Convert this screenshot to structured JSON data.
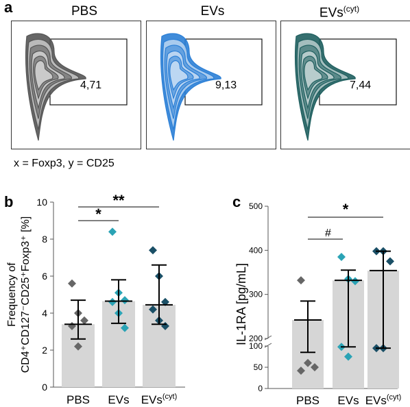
{
  "panel_a": {
    "letter": "a",
    "plots": [
      {
        "title": "PBS",
        "title_sup": "",
        "value": "4,71",
        "color": "#555555"
      },
      {
        "title": "EVs",
        "title_sup": "",
        "value": "9,13",
        "color": "#2b7fd6"
      },
      {
        "title": "EVs",
        "title_sup": "(cyt)",
        "value": "7,44",
        "color": "#1f5f5f"
      }
    ],
    "axis_note": "x = Foxp3, y = CD25"
  },
  "chart_data": [
    {
      "panel": "b",
      "type": "bar",
      "ylabel_line1": "Frequency of",
      "ylabel_line2": "CD4⁺CD127⁻CD25⁺Foxp3⁺ [%]",
      "ylim": [
        0,
        10
      ],
      "yticks": [
        "0",
        "2",
        "4",
        "6",
        "8",
        "10"
      ],
      "categories": [
        "PBS",
        "EVs",
        "EVs"
      ],
      "category_sups": [
        "",
        "",
        "(cyt)"
      ],
      "bar_values": [
        3.4,
        4.65,
        4.45
      ],
      "error_low": [
        2.6,
        3.45,
        3.4
      ],
      "error_high": [
        4.7,
        5.8,
        6.6
      ],
      "points": [
        [
          5.6,
          4.0,
          3.6,
          3.3,
          2.2
        ],
        [
          8.4,
          5.1,
          4.7,
          4.6,
          4.0,
          3.2
        ],
        [
          7.4,
          6.0,
          4.6,
          4.2,
          3.6,
          3.3
        ]
      ],
      "point_colors": [
        "#666666",
        "#2aa3b5",
        "#1a4f66"
      ],
      "significance": [
        {
          "label": "*",
          "from": 0,
          "to": 1
        },
        {
          "label": "**",
          "from": 0,
          "to": 2
        }
      ]
    },
    {
      "panel": "c",
      "type": "bar",
      "ylabel": "IL-1RA [pg/mL]",
      "axis_break": true,
      "lower_range": [
        0,
        100
      ],
      "upper_range": [
        200,
        500
      ],
      "yticks_lower": [
        "0",
        "50",
        "100"
      ],
      "yticks_upper": [
        "200",
        "300",
        "400",
        "500"
      ],
      "categories": [
        "PBS",
        "EVs",
        "EVs"
      ],
      "category_sups": [
        "",
        "",
        "(cyt)"
      ],
      "bar_values": [
        242,
        332,
        354
      ],
      "error_low": [
        85,
        98,
        95
      ],
      "error_high": [
        285,
        355,
        398
      ],
      "points": [
        [
          332,
          60,
          50,
          42
        ],
        [
          385,
          335,
          330,
          98,
          75
        ],
        [
          398,
          398,
          375,
          95,
          95
        ]
      ],
      "point_colors": [
        "#666666",
        "#2aa3b5",
        "#1a4f66"
      ],
      "significance": [
        {
          "label": "#",
          "from": 0,
          "to": 1
        },
        {
          "label": "*",
          "from": 0,
          "to": 2
        }
      ]
    }
  ]
}
